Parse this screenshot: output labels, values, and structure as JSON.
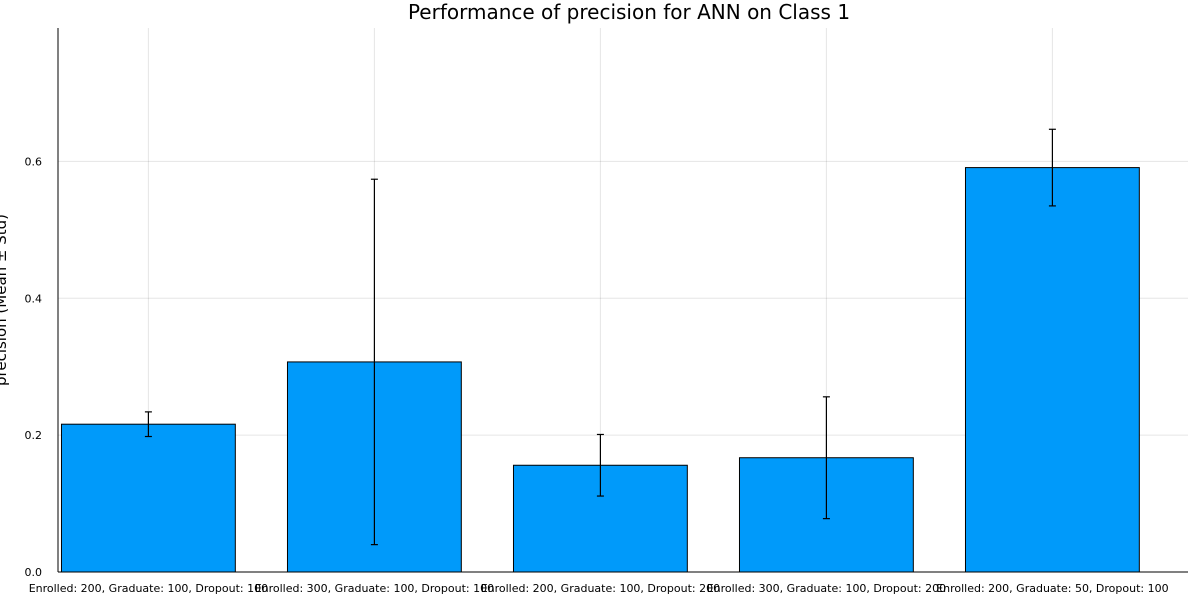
{
  "chart_data": {
    "type": "bar",
    "title": "Performance of precision for ANN on Class 1",
    "xlabel": "",
    "ylabel": "precision (Mean ± Std)",
    "categories": [
      "Enrolled: 200, Graduate: 100, Dropout: 100",
      "Enrolled: 300, Graduate: 100, Dropout: 100",
      "Enrolled: 200, Graduate: 100, Dropout: 200",
      "Enrolled: 300, Graduate: 100, Dropout: 200",
      "Enrolled: 200, Graduate: 50, Dropout: 100"
    ],
    "values": [
      0.216,
      0.307,
      0.156,
      0.167,
      0.591
    ],
    "errors": [
      0.018,
      0.267,
      0.045,
      0.089,
      0.056
    ],
    "ylim": [
      0,
      0.795
    ],
    "yticks": [
      0.0,
      0.2,
      0.4,
      0.6
    ],
    "ytick_labels": [
      "0.0",
      "0.2",
      "0.4",
      "0.6"
    ],
    "grid": true,
    "legend": "none",
    "bar_color": "#009AFA"
  }
}
